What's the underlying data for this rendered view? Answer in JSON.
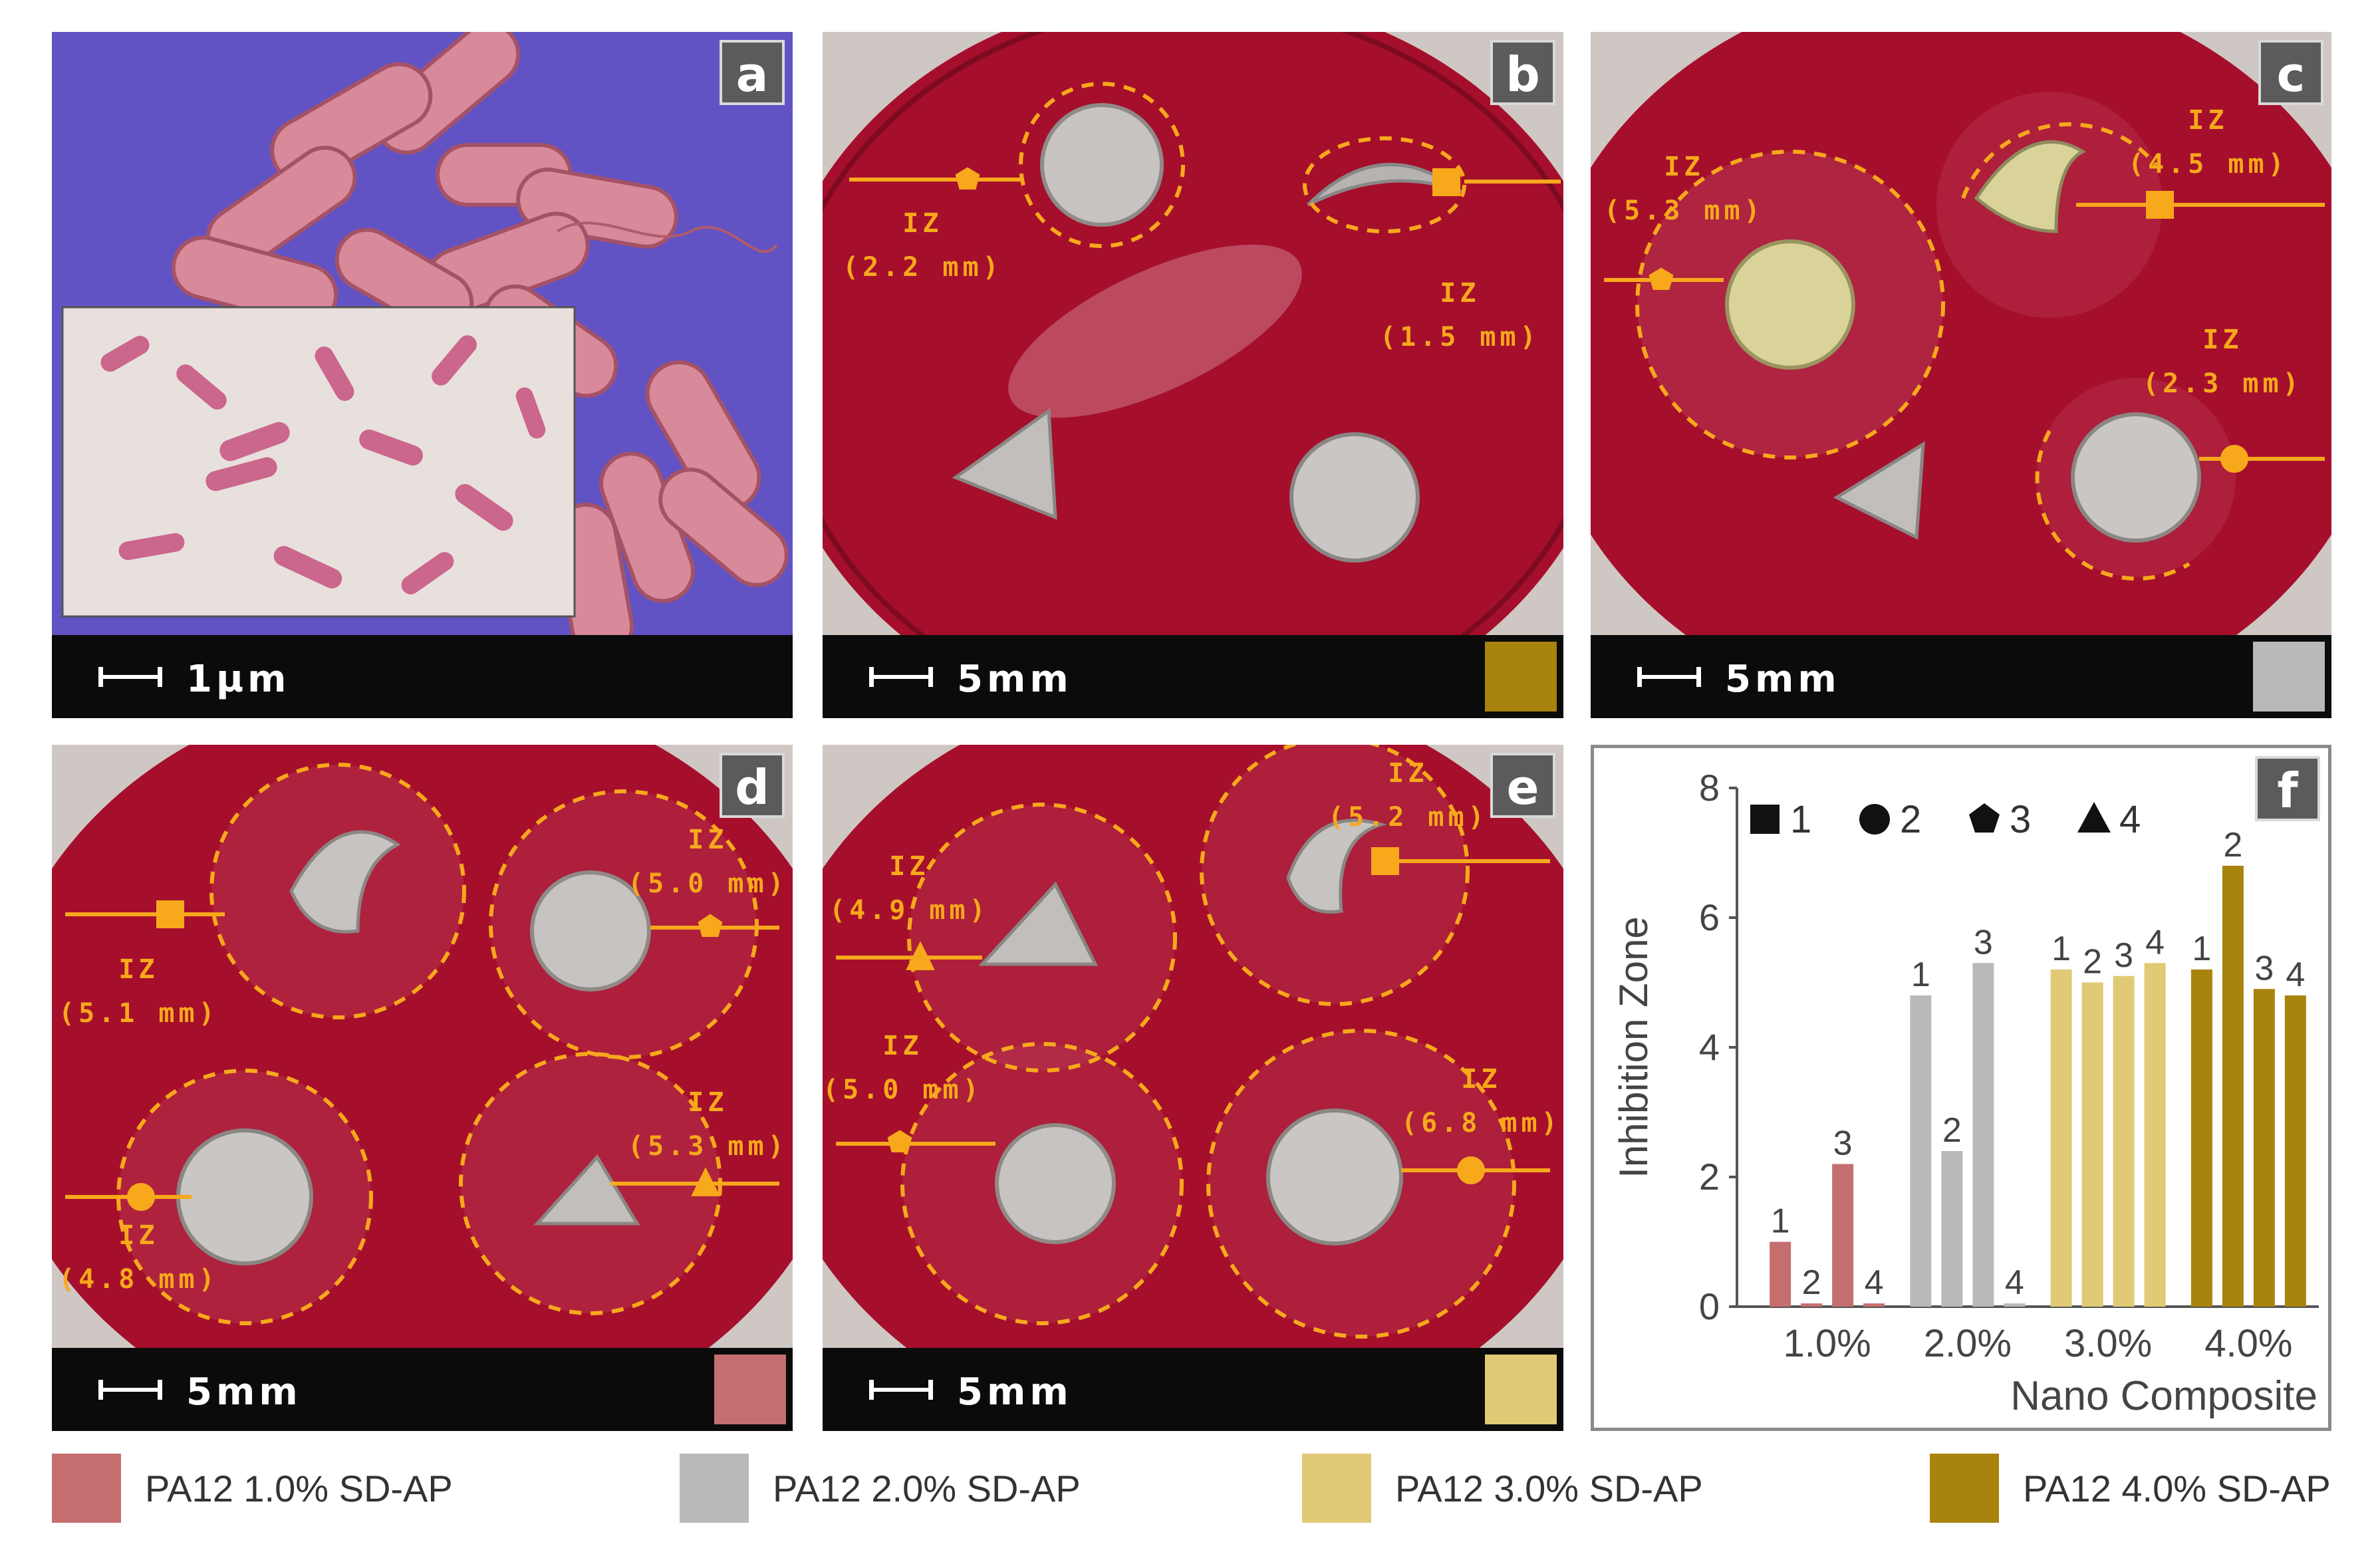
{
  "colors": {
    "agar": "#a50f2c",
    "highlight": "#f7a81b",
    "strip": "#0b0b0b",
    "letter_bg": "#5b5b5b",
    "pa12_1": "#c56e70",
    "pa12_2": "#b9b9b9",
    "pa12_3": "#e1ca75",
    "pa12_4": "#a8830d"
  },
  "panels": {
    "a": {
      "letter": "a",
      "scale": "1µm"
    },
    "b": {
      "letter": "b",
      "scale": "5mm",
      "swatch": "#a8830d",
      "labels": [
        {
          "iz": "IZ",
          "mm": "(2.2 mm)"
        },
        {
          "iz": "IZ",
          "mm": "(1.5 mm)"
        }
      ]
    },
    "c": {
      "letter": "c",
      "scale": "5mm",
      "swatch": "#b9b9b9",
      "labels": [
        {
          "iz": "IZ",
          "mm": "(5.3 mm)"
        },
        {
          "iz": "IZ",
          "mm": "(4.5 mm)"
        },
        {
          "iz": "IZ",
          "mm": "(2.3 mm)"
        }
      ]
    },
    "d": {
      "letter": "d",
      "scale": "5mm",
      "swatch": "#c56e70",
      "labels": [
        {
          "iz": "IZ",
          "mm": "(5.1 mm)"
        },
        {
          "iz": "IZ",
          "mm": "(5.0 mm)"
        },
        {
          "iz": "IZ",
          "mm": "(4.8 mm)"
        },
        {
          "iz": "IZ",
          "mm": "(5.3 mm)"
        }
      ]
    },
    "e": {
      "letter": "e",
      "scale": "5mm",
      "swatch": "#e1ca75",
      "labels": [
        {
          "iz": "IZ",
          "mm": "(4.9 mm)"
        },
        {
          "iz": "IZ",
          "mm": "(5.2 mm)"
        },
        {
          "iz": "IZ",
          "mm": "(5.0 mm)"
        },
        {
          "iz": "IZ",
          "mm": "(6.8 mm)"
        }
      ]
    },
    "f": {
      "letter": "f"
    }
  },
  "legend": [
    {
      "label": "PA12 1.0% SD-AP",
      "color": "#c56e70"
    },
    {
      "label": "PA12 2.0% SD-AP",
      "color": "#b9b9b9"
    },
    {
      "label": "PA12 3.0% SD-AP",
      "color": "#e1ca75"
    },
    {
      "label": "PA12 4.0% SD-AP",
      "color": "#a8830d"
    }
  ],
  "chart_data": {
    "type": "bar",
    "xlabel": "Nano Composite",
    "ylabel": "Inhibition Zone",
    "ylim": [
      0,
      8
    ],
    "yticks": [
      "0",
      "2",
      "4",
      "6",
      "8"
    ],
    "categories": [
      "1.0%",
      "2.0%",
      "3.0%",
      "4.0%"
    ],
    "category_colors": [
      "#c56e70",
      "#b9b9b9",
      "#e1ca75",
      "#a8830d"
    ],
    "series": [
      {
        "name": "1",
        "values": [
          1.0,
          4.8,
          5.2,
          5.2
        ]
      },
      {
        "name": "2",
        "values": [
          0.05,
          2.4,
          5.0,
          6.8
        ]
      },
      {
        "name": "3",
        "values": [
          2.2,
          5.3,
          5.1,
          4.9
        ]
      },
      {
        "name": "4",
        "values": [
          0.05,
          0.05,
          5.3,
          4.8
        ]
      }
    ],
    "bar_labels": [
      "1",
      "2",
      "3",
      "4"
    ],
    "legend_placement": "top",
    "legend": [
      {
        "name": "1",
        "marker": "square"
      },
      {
        "name": "2",
        "marker": "circle"
      },
      {
        "name": "3",
        "marker": "pentagon"
      },
      {
        "name": "4",
        "marker": "triangle"
      }
    ],
    "grid": false
  }
}
